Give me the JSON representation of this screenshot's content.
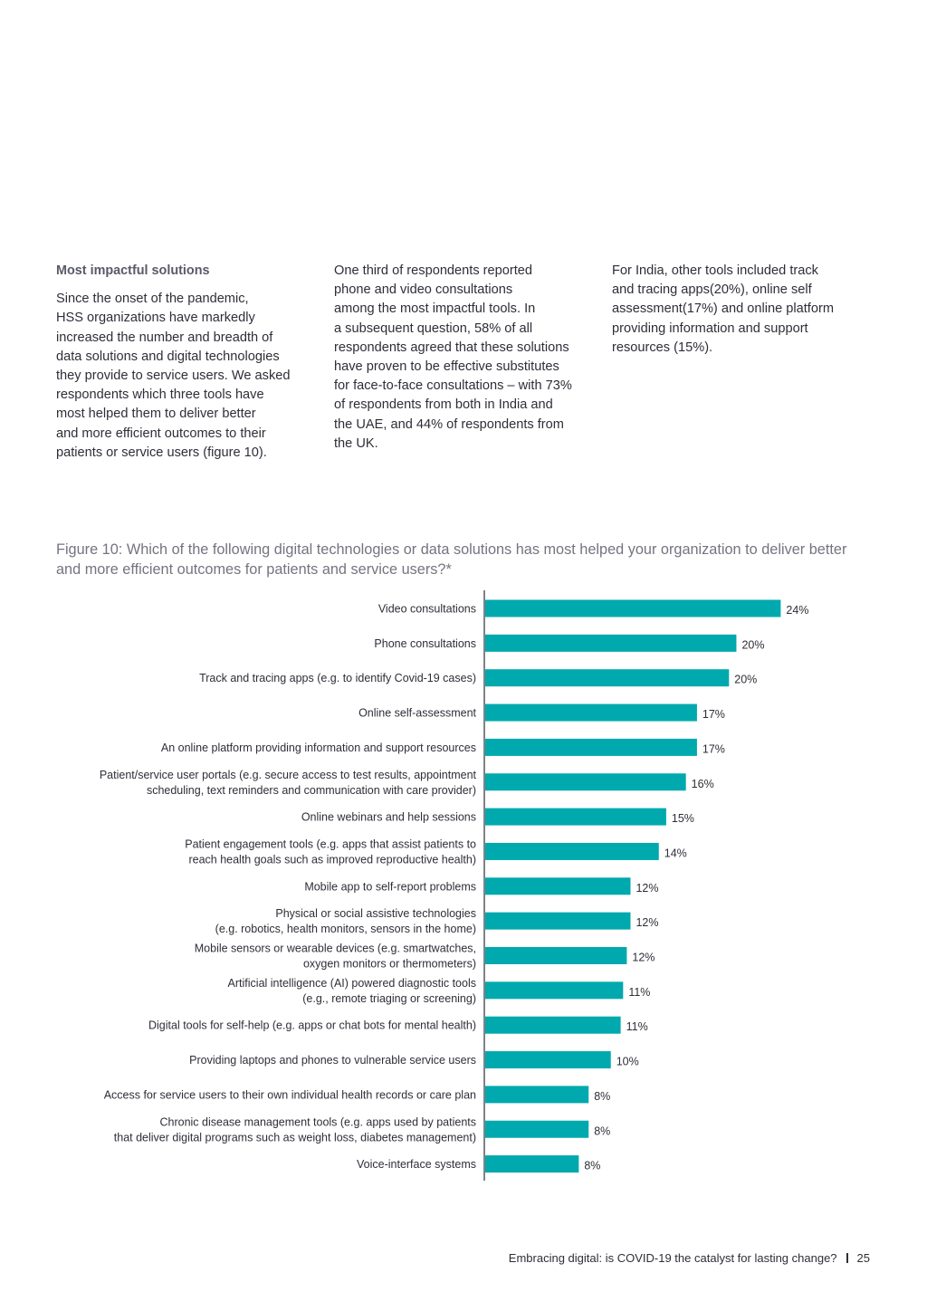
{
  "text": {
    "col1_heading": "Most impactful solutions",
    "col1_body": "Since the onset of the pandemic,\nHSS organizations have markedly\nincreased the number and breadth of\ndata solutions and digital technologies\nthey provide to service users. We asked\nrespondents which three tools have\nmost helped them to deliver better\nand more efficient outcomes to their\npatients or service users (figure 10).",
    "col2_body": "One third of respondents reported\nphone and video consultations\namong the most impactful tools. In\na subsequent question, 58% of all\nrespondents agreed that these solutions\nhave proven to be effective substitutes\nfor face-to-face consultations – with 73%\nof respondents from both in India and\nthe UAE, and 44% of respondents from\nthe UK.",
    "col3_body": "For India, other tools included track\nand tracing apps(20%), online self\nassessment(17%) and online platform\nproviding information and support\nresources (15%).",
    "figure_title": "Figure 10: Which of the following digital technologies or data solutions has most helped your organization to deliver better and more efficient outcomes for patients and service users?*",
    "footer_text": "Embracing digital: is COVID-19 the catalyst for lasting change?",
    "page_number": "25"
  },
  "colors": {
    "bar": "#00a9ad",
    "axis": "#2e2e38"
  },
  "chart_data": {
    "type": "bar",
    "orientation": "horizontal",
    "value_suffix": "%",
    "xlim": [
      0,
      24
    ],
    "grid": false,
    "categories": [
      [
        "Video consultations"
      ],
      [
        "Phone consultations"
      ],
      [
        "Track and tracing apps (e.g. to identify Covid-19 cases)"
      ],
      [
        "Online self-assessment"
      ],
      [
        "An online platform providing information and support resources"
      ],
      [
        "Patient/service user portals (e.g. secure access to test results, appointment",
        "scheduling, text reminders and communication with care provider)"
      ],
      [
        "Online webinars and help sessions"
      ],
      [
        "Patient engagement tools (e.g. apps that assist patients to",
        "reach health goals such as improved reproductive health)"
      ],
      [
        "Mobile app to self-report problems"
      ],
      [
        "Physical or social assistive technologies",
        "(e.g. robotics, health monitors, sensors in the home)"
      ],
      [
        "Mobile sensors or wearable devices (e.g. smartwatches,",
        "oxygen monitors or thermometers)"
      ],
      [
        "Artificial intelligence (AI) powered diagnostic tools",
        "(e.g., remote triaging or screening)"
      ],
      [
        "Digital tools for self-help (e.g. apps or chat bots for mental health)"
      ],
      [
        "Providing laptops and phones to vulnerable service users"
      ],
      [
        "Access for service users to their own individual health records or care plan"
      ],
      [
        "Chronic disease management tools (e.g. apps used by patients",
        "that deliver digital programs such as weight loss, diabetes management)"
      ],
      [
        "Voice-interface systems"
      ]
    ],
    "values": [
      24,
      20,
      20,
      17,
      17,
      16,
      15,
      14,
      12,
      12,
      12,
      11,
      11,
      10,
      8,
      8,
      8
    ],
    "bar_visual_values": [
      24,
      20.4,
      19.8,
      17.2,
      17.2,
      16.3,
      14.7,
      14.1,
      11.8,
      11.8,
      11.5,
      11.2,
      11.0,
      10.2,
      8.4,
      8.4,
      7.6
    ]
  }
}
